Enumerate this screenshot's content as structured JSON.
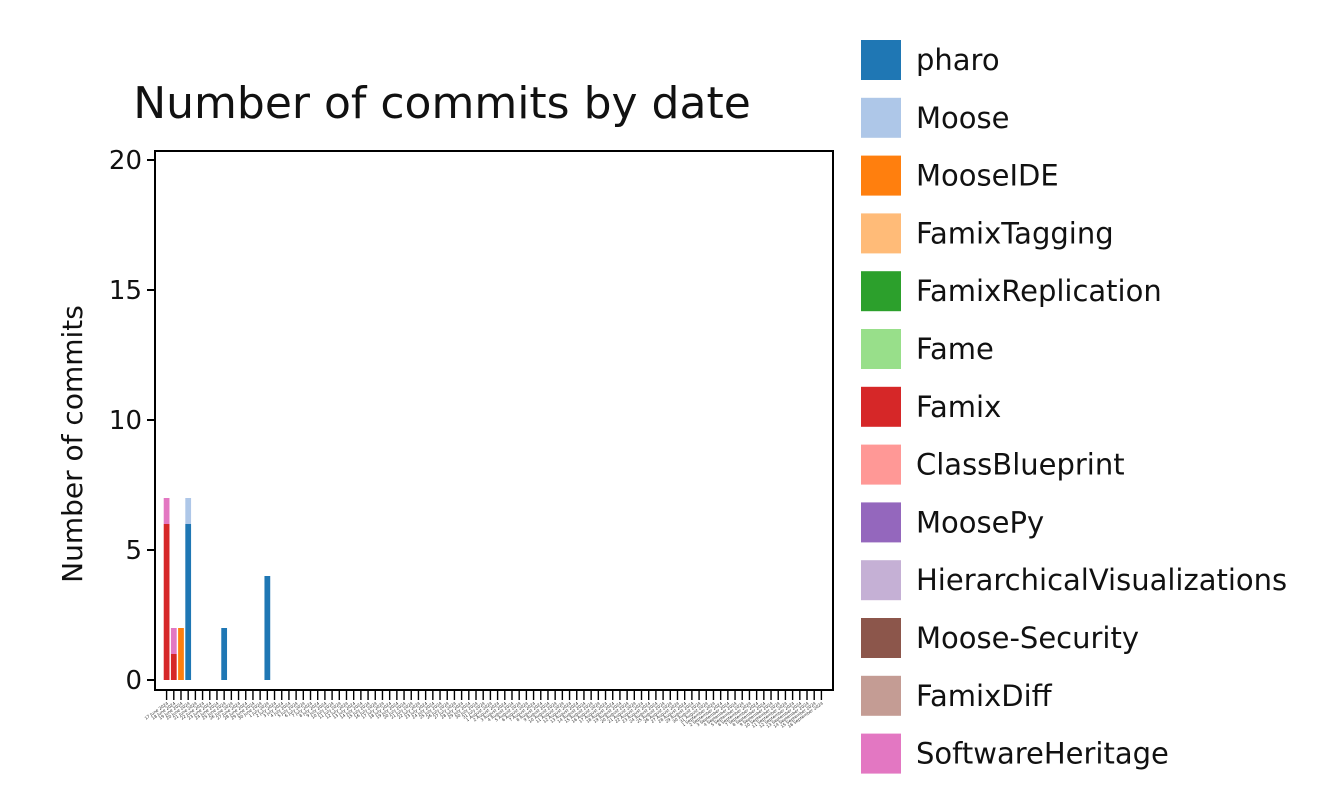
{
  "chart_data": {
    "type": "bar",
    "stacked": true,
    "title": "Number of commits by date",
    "xlabel": "",
    "ylabel": "Number of commits",
    "ylim": [
      0,
      20
    ],
    "yticks": [
      0,
      5,
      10,
      15,
      20
    ],
    "grid": false,
    "legend_position": "right",
    "categories": [
      "17 June 2024",
      "18 June 2024",
      "19 June 2024",
      "20 June 2024",
      "21 June 2024",
      "22 June 2024",
      "23 June 2024",
      "24 June 2024",
      "25 June 2024",
      "26 June 2024",
      "27 June 2024",
      "28 June 2024",
      "29 June 2024",
      "30 June 2024",
      "1 July 2024",
      "2 July 2024",
      "3 July 2024",
      "4 July 2024",
      "5 July 2024",
      "6 July 2024",
      "7 July 2024",
      "8 July 2024",
      "9 July 2024",
      "10 July 2024",
      "11 July 2024",
      "12 July 2024",
      "13 July 2024",
      "14 July 2024",
      "15 July 2024",
      "16 July 2024",
      "17 July 2024",
      "18 July 2024",
      "19 July 2024",
      "20 July 2024",
      "21 July 2024",
      "22 July 2024",
      "23 July 2024",
      "24 July 2024",
      "25 July 2024",
      "26 July 2024",
      "27 July 2024",
      "28 July 2024",
      "29 July 2024",
      "30 July 2024",
      "31 July 2024",
      "1 August 2024",
      "2 August 2024",
      "3 August 2024",
      "4 August 2024",
      "5 August 2024",
      "6 August 2024",
      "7 August 2024",
      "8 August 2024",
      "9 August 2024",
      "10 August 2024",
      "11 August 2024",
      "12 August 2024",
      "13 August 2024",
      "14 August 2024",
      "15 August 2024",
      "16 August 2024",
      "17 August 2024",
      "18 August 2024",
      "19 August 2024",
      "20 August 2024",
      "21 August 2024",
      "22 August 2024",
      "23 August 2024",
      "24 August 2024",
      "25 August 2024",
      "26 August 2024",
      "27 August 2024",
      "28 August 2024",
      "29 August 2024",
      "30 August 2024",
      "31 August 2024",
      "1 September 2024",
      "2 September 2024",
      "3 September 2024",
      "4 September 2024",
      "5 September 2024",
      "6 September 2024",
      "7 September 2024",
      "8 September 2024",
      "9 September 2024",
      "10 September 2024",
      "11 September 2024",
      "12 September 2024",
      "13 September 2024",
      "14 September 2024",
      "15 September 2024",
      "16 September 2024"
    ],
    "series": [
      {
        "name": "pharo",
        "color": "#1f77b4",
        "values": [
          0,
          0,
          0,
          6,
          0,
          0,
          0,
          0,
          2,
          0,
          0,
          0,
          0,
          0,
          4,
          0,
          0,
          0,
          0,
          0,
          0,
          0,
          0,
          0,
          0,
          0,
          0,
          0,
          0,
          0,
          0,
          0,
          0,
          0,
          0,
          0,
          0,
          0,
          0,
          0,
          0,
          0,
          0,
          0,
          0,
          0,
          0,
          0,
          0,
          0,
          0,
          0,
          0,
          0,
          0,
          0,
          0,
          0,
          0,
          0,
          0,
          0,
          0,
          0,
          0,
          0,
          0,
          0,
          0,
          0,
          0,
          0,
          0,
          0,
          0,
          0,
          0,
          0,
          0,
          0,
          0,
          0,
          0,
          0,
          0,
          0,
          0,
          0,
          0,
          0,
          0,
          0
        ]
      },
      {
        "name": "Moose",
        "color": "#aec7e8",
        "values": [
          0,
          0,
          0,
          1,
          0,
          0,
          0,
          0,
          0,
          0,
          0,
          0,
          0,
          0,
          0,
          0,
          0,
          0,
          0,
          0,
          0,
          0,
          0,
          0,
          0,
          0,
          0,
          0,
          0,
          0,
          0,
          0,
          0,
          0,
          0,
          0,
          0,
          0,
          0,
          0,
          0,
          0,
          0,
          0,
          0,
          0,
          0,
          0,
          0,
          0,
          0,
          0,
          0,
          0,
          0,
          0,
          0,
          0,
          0,
          0,
          0,
          0,
          0,
          0,
          0,
          0,
          0,
          0,
          0,
          0,
          0,
          0,
          0,
          0,
          0,
          0,
          0,
          0,
          0,
          0,
          0,
          0,
          0,
          0,
          0,
          0,
          0,
          0,
          0,
          0,
          0,
          0
        ]
      },
      {
        "name": "MooseIDE",
        "color": "#ff7f0e",
        "values": [
          0,
          0,
          2,
          0,
          0,
          0,
          0,
          0,
          0,
          0,
          0,
          0,
          0,
          0,
          0,
          0,
          0,
          0,
          0,
          0,
          0,
          0,
          0,
          0,
          0,
          0,
          0,
          0,
          0,
          0,
          0,
          0,
          0,
          0,
          0,
          0,
          0,
          0,
          0,
          0,
          0,
          0,
          0,
          0,
          0,
          0,
          0,
          0,
          0,
          0,
          0,
          0,
          0,
          0,
          0,
          0,
          0,
          0,
          0,
          0,
          0,
          0,
          0,
          0,
          0,
          0,
          0,
          0,
          0,
          0,
          0,
          0,
          0,
          0,
          0,
          0,
          0,
          0,
          0,
          0,
          0,
          0,
          0,
          0,
          0,
          0,
          0,
          0,
          0,
          0,
          0,
          0
        ]
      },
      {
        "name": "FamixTagging",
        "color": "#ffbb78",
        "values": [
          0,
          0,
          0,
          0,
          0,
          0,
          0,
          0,
          0,
          0,
          0,
          0,
          0,
          0,
          0,
          0,
          0,
          0,
          0,
          0,
          0,
          0,
          0,
          0,
          0,
          0,
          0,
          0,
          0,
          0,
          0,
          0,
          0,
          0,
          0,
          0,
          0,
          0,
          0,
          0,
          0,
          0,
          0,
          0,
          0,
          0,
          0,
          0,
          0,
          0,
          0,
          0,
          0,
          0,
          0,
          0,
          0,
          0,
          0,
          0,
          0,
          0,
          0,
          0,
          0,
          0,
          0,
          0,
          0,
          0,
          0,
          0,
          0,
          0,
          0,
          0,
          0,
          0,
          0,
          0,
          0,
          0,
          0,
          0,
          0,
          0,
          0,
          0,
          0,
          0,
          0,
          0
        ]
      },
      {
        "name": "FamixReplication",
        "color": "#2ca02c",
        "values": [
          0,
          0,
          0,
          0,
          0,
          0,
          0,
          0,
          0,
          0,
          0,
          0,
          0,
          0,
          0,
          0,
          0,
          0,
          0,
          0,
          0,
          0,
          0,
          0,
          0,
          0,
          0,
          0,
          0,
          0,
          0,
          0,
          0,
          0,
          0,
          0,
          0,
          0,
          0,
          0,
          0,
          0,
          0,
          0,
          0,
          0,
          0,
          0,
          0,
          0,
          0,
          0,
          0,
          0,
          0,
          0,
          0,
          0,
          0,
          0,
          0,
          0,
          0,
          0,
          0,
          0,
          0,
          0,
          0,
          0,
          0,
          0,
          0,
          0,
          0,
          0,
          0,
          0,
          0,
          0,
          0,
          0,
          0,
          0,
          0,
          0,
          0,
          0,
          0,
          0,
          0,
          0
        ]
      },
      {
        "name": "Fame",
        "color": "#98df8a",
        "values": [
          0,
          0,
          0,
          0,
          0,
          0,
          0,
          0,
          0,
          0,
          0,
          0,
          0,
          0,
          0,
          0,
          0,
          0,
          0,
          0,
          0,
          0,
          0,
          0,
          0,
          0,
          0,
          0,
          0,
          0,
          0,
          0,
          0,
          0,
          0,
          0,
          0,
          0,
          0,
          0,
          0,
          0,
          0,
          0,
          0,
          0,
          0,
          0,
          0,
          0,
          0,
          0,
          0,
          0,
          0,
          0,
          0,
          0,
          0,
          0,
          0,
          0,
          0,
          0,
          0,
          0,
          0,
          0,
          0,
          0,
          0,
          0,
          0,
          0,
          0,
          0,
          0,
          0,
          0,
          0,
          0,
          0,
          0,
          0,
          0,
          0,
          0,
          0,
          0,
          0,
          0,
          0
        ]
      },
      {
        "name": "Famix",
        "color": "#d62728",
        "values": [
          6,
          1,
          0,
          0,
          0,
          0,
          0,
          0,
          0,
          0,
          0,
          0,
          0,
          0,
          0,
          0,
          0,
          0,
          0,
          0,
          0,
          0,
          0,
          0,
          0,
          0,
          0,
          0,
          0,
          0,
          0,
          0,
          0,
          0,
          0,
          0,
          0,
          0,
          0,
          0,
          0,
          0,
          0,
          0,
          0,
          0,
          0,
          0,
          0,
          0,
          0,
          0,
          0,
          0,
          0,
          0,
          0,
          0,
          0,
          0,
          0,
          0,
          0,
          0,
          0,
          0,
          0,
          0,
          0,
          0,
          0,
          0,
          0,
          0,
          0,
          0,
          0,
          0,
          0,
          0,
          0,
          0,
          0,
          0,
          0,
          0,
          0,
          0,
          0,
          0,
          0,
          0
        ]
      },
      {
        "name": "ClassBlueprint",
        "color": "#ff9896",
        "values": [
          0,
          0,
          0,
          0,
          0,
          0,
          0,
          0,
          0,
          0,
          0,
          0,
          0,
          0,
          0,
          0,
          0,
          0,
          0,
          0,
          0,
          0,
          0,
          0,
          0,
          0,
          0,
          0,
          0,
          0,
          0,
          0,
          0,
          0,
          0,
          0,
          0,
          0,
          0,
          0,
          0,
          0,
          0,
          0,
          0,
          0,
          0,
          0,
          0,
          0,
          0,
          0,
          0,
          0,
          0,
          0,
          0,
          0,
          0,
          0,
          0,
          0,
          0,
          0,
          0,
          0,
          0,
          0,
          0,
          0,
          0,
          0,
          0,
          0,
          0,
          0,
          0,
          0,
          0,
          0,
          0,
          0,
          0,
          0,
          0,
          0,
          0,
          0,
          0,
          0,
          0,
          0
        ]
      },
      {
        "name": "MoosePy",
        "color": "#9467bd",
        "values": [
          0,
          0,
          0,
          0,
          0,
          0,
          0,
          0,
          0,
          0,
          0,
          0,
          0,
          0,
          0,
          0,
          0,
          0,
          0,
          0,
          0,
          0,
          0,
          0,
          0,
          0,
          0,
          0,
          0,
          0,
          0,
          0,
          0,
          0,
          0,
          0,
          0,
          0,
          0,
          0,
          0,
          0,
          0,
          0,
          0,
          0,
          0,
          0,
          0,
          0,
          0,
          0,
          0,
          0,
          0,
          0,
          0,
          0,
          0,
          0,
          0,
          0,
          0,
          0,
          0,
          0,
          0,
          0,
          0,
          0,
          0,
          0,
          0,
          0,
          0,
          0,
          0,
          0,
          0,
          0,
          0,
          0,
          0,
          0,
          0,
          0,
          0,
          0,
          0,
          0,
          0,
          0
        ]
      },
      {
        "name": "HierarchicalVisualizations",
        "color": "#c5b0d5",
        "values": [
          0,
          0,
          0,
          0,
          0,
          0,
          0,
          0,
          0,
          0,
          0,
          0,
          0,
          0,
          0,
          0,
          0,
          0,
          0,
          0,
          0,
          0,
          0,
          0,
          0,
          0,
          0,
          0,
          0,
          0,
          0,
          0,
          0,
          0,
          0,
          0,
          0,
          0,
          0,
          0,
          0,
          0,
          0,
          0,
          0,
          0,
          0,
          0,
          0,
          0,
          0,
          0,
          0,
          0,
          0,
          0,
          0,
          0,
          0,
          0,
          0,
          0,
          0,
          0,
          0,
          0,
          0,
          0,
          0,
          0,
          0,
          0,
          0,
          0,
          0,
          0,
          0,
          0,
          0,
          0,
          0,
          0,
          0,
          0,
          0,
          0,
          0,
          0,
          0,
          0,
          0,
          0
        ]
      },
      {
        "name": "Moose-Security",
        "color": "#8c564b",
        "values": [
          0,
          0,
          0,
          0,
          0,
          0,
          0,
          0,
          0,
          0,
          0,
          0,
          0,
          0,
          0,
          0,
          0,
          0,
          0,
          0,
          0,
          0,
          0,
          0,
          0,
          0,
          0,
          0,
          0,
          0,
          0,
          0,
          0,
          0,
          0,
          0,
          0,
          0,
          0,
          0,
          0,
          0,
          0,
          0,
          0,
          0,
          0,
          0,
          0,
          0,
          0,
          0,
          0,
          0,
          0,
          0,
          0,
          0,
          0,
          0,
          0,
          0,
          0,
          0,
          0,
          0,
          0,
          0,
          0,
          0,
          0,
          0,
          0,
          0,
          0,
          0,
          0,
          0,
          0,
          0,
          0,
          0,
          0,
          0,
          0,
          0,
          0,
          0,
          0,
          0,
          0,
          0
        ]
      },
      {
        "name": "FamixDiff",
        "color": "#c49c94",
        "values": [
          0,
          0,
          0,
          0,
          0,
          0,
          0,
          0,
          0,
          0,
          0,
          0,
          0,
          0,
          0,
          0,
          0,
          0,
          0,
          0,
          0,
          0,
          0,
          0,
          0,
          0,
          0,
          0,
          0,
          0,
          0,
          0,
          0,
          0,
          0,
          0,
          0,
          0,
          0,
          0,
          0,
          0,
          0,
          0,
          0,
          0,
          0,
          0,
          0,
          0,
          0,
          0,
          0,
          0,
          0,
          0,
          0,
          0,
          0,
          0,
          0,
          0,
          0,
          0,
          0,
          0,
          0,
          0,
          0,
          0,
          0,
          0,
          0,
          0,
          0,
          0,
          0,
          0,
          0,
          0,
          0,
          0,
          0,
          0,
          0,
          0,
          0,
          0,
          0,
          0,
          0,
          0
        ]
      },
      {
        "name": "SoftwareHeritage",
        "color": "#e377c2",
        "values": [
          1,
          1,
          0,
          0,
          0,
          0,
          0,
          0,
          0,
          0,
          0,
          0,
          0,
          0,
          0,
          0,
          0,
          0,
          0,
          0,
          0,
          0,
          0,
          0,
          0,
          0,
          0,
          0,
          0,
          0,
          0,
          0,
          0,
          0,
          0,
          0,
          0,
          0,
          0,
          0,
          0,
          0,
          0,
          0,
          0,
          0,
          0,
          0,
          0,
          0,
          0,
          0,
          0,
          0,
          0,
          0,
          0,
          0,
          0,
          0,
          0,
          0,
          0,
          0,
          0,
          0,
          0,
          0,
          0,
          0,
          0,
          0,
          0,
          0,
          0,
          0,
          0,
          0,
          0,
          0,
          0,
          0,
          0,
          0,
          0,
          0,
          0,
          0,
          0,
          0,
          0,
          0
        ]
      }
    ]
  }
}
